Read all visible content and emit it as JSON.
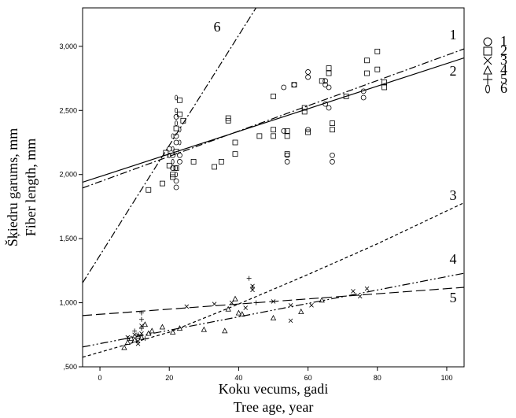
{
  "chart_data": {
    "type": "scatter",
    "xlabel_lines": [
      "Koku vecums, gadi",
      "Tree age, year"
    ],
    "ylabel_lines": [
      "Šķiedru garums, mm",
      "Fiber length, mm"
    ],
    "xlim": [
      -5,
      105
    ],
    "ylim": [
      500,
      3300
    ],
    "x_ticks": [
      {
        "value": 0,
        "label": "0"
      },
      {
        "value": 20,
        "label": "20"
      },
      {
        "value": 40,
        "label": "40"
      },
      {
        "value": 60,
        "label": "60"
      },
      {
        "value": 80,
        "label": "80"
      },
      {
        "value": 100,
        "label": "100"
      }
    ],
    "y_ticks": [
      {
        "value": 500,
        "label": ",500"
      },
      {
        "value": 1000,
        "label": "1,000"
      },
      {
        "value": 1500,
        "label": "1,500"
      },
      {
        "value": 2000,
        "label": "2,000"
      },
      {
        "value": 2500,
        "label": "2,500"
      },
      {
        "value": 3000,
        "label": "3,000"
      }
    ],
    "grid": false,
    "legend_position": "right-outside-top",
    "series": [
      {
        "name": "1",
        "marker": "circle",
        "points": [
          [
            20,
            2200
          ],
          [
            21,
            2150
          ],
          [
            21,
            2050
          ],
          [
            22,
            1950
          ],
          [
            22,
            1900
          ],
          [
            22,
            2250
          ],
          [
            22,
            2300
          ],
          [
            23,
            2150
          ],
          [
            23,
            2100
          ],
          [
            22,
            2450
          ],
          [
            53,
            2680
          ],
          [
            54,
            2150
          ],
          [
            54,
            2100
          ],
          [
            56,
            2700
          ],
          [
            53,
            2340
          ],
          [
            60,
            2800
          ],
          [
            60,
            2760
          ],
          [
            60,
            2350
          ],
          [
            65,
            2730
          ],
          [
            65,
            2700
          ],
          [
            66,
            2680
          ],
          [
            65,
            2550
          ],
          [
            66,
            2520
          ],
          [
            67,
            2150
          ],
          [
            67,
            2100
          ],
          [
            76,
            2650
          ],
          [
            76,
            2600
          ]
        ],
        "trend": {
          "type": "linear",
          "style": "dashdot",
          "y_at_xmin": 1895,
          "y_at_xmax": 2980
        }
      },
      {
        "name": "2",
        "marker": "square",
        "points": [
          [
            14,
            1880
          ],
          [
            18,
            1930
          ],
          [
            19,
            2170
          ],
          [
            20,
            2070
          ],
          [
            21,
            2000
          ],
          [
            21,
            1980
          ],
          [
            22,
            2050
          ],
          [
            22,
            2360
          ],
          [
            22,
            2180
          ],
          [
            23,
            2580
          ],
          [
            23,
            2470
          ],
          [
            24,
            2420
          ],
          [
            27,
            2100
          ],
          [
            33,
            2060
          ],
          [
            35,
            2100
          ],
          [
            37,
            2440
          ],
          [
            37,
            2420
          ],
          [
            39,
            2160
          ],
          [
            39,
            2250
          ],
          [
            46,
            2300
          ],
          [
            50,
            2610
          ],
          [
            50,
            2350
          ],
          [
            50,
            2300
          ],
          [
            54,
            2340
          ],
          [
            54,
            2300
          ],
          [
            54,
            2160
          ],
          [
            56,
            2700
          ],
          [
            59,
            2520
          ],
          [
            59,
            2490
          ],
          [
            60,
            2330
          ],
          [
            64,
            2730
          ],
          [
            66,
            2830
          ],
          [
            66,
            2790
          ],
          [
            67,
            2400
          ],
          [
            67,
            2350
          ],
          [
            71,
            2610
          ],
          [
            77,
            2890
          ],
          [
            77,
            2790
          ],
          [
            80,
            2960
          ],
          [
            80,
            2820
          ],
          [
            82,
            2720
          ],
          [
            82,
            2680
          ]
        ],
        "trend": {
          "type": "linear",
          "style": "solid",
          "y_at_xmin": 1940,
          "y_at_xmax": 2910
        }
      },
      {
        "name": "3",
        "marker": "x",
        "points": [
          [
            8,
            730
          ],
          [
            10,
            750
          ],
          [
            11,
            700
          ],
          [
            11,
            680
          ],
          [
            12,
            760
          ],
          [
            12,
            820
          ],
          [
            25,
            970
          ],
          [
            33,
            990
          ],
          [
            38,
            1000
          ],
          [
            42,
            960
          ],
          [
            44,
            1130
          ],
          [
            44,
            1100
          ],
          [
            50,
            1010
          ],
          [
            55,
            860
          ],
          [
            55,
            980
          ],
          [
            61,
            980
          ],
          [
            73,
            1090
          ],
          [
            75,
            1050
          ],
          [
            77,
            1110
          ]
        ],
        "trend": {
          "type": "quadratic",
          "style": "dashed",
          "x": [
            -5,
            20,
            40,
            60,
            80,
            105
          ],
          "y": [
            575,
            770,
            990,
            1220,
            1460,
            1780
          ]
        }
      },
      {
        "name": "4",
        "marker": "triangle",
        "points": [
          [
            7,
            650
          ],
          [
            8,
            690
          ],
          [
            9,
            720
          ],
          [
            10,
            710
          ],
          [
            11,
            740
          ],
          [
            12,
            730
          ],
          [
            13,
            830
          ],
          [
            14,
            760
          ],
          [
            15,
            780
          ],
          [
            18,
            810
          ],
          [
            21,
            770
          ],
          [
            23,
            800
          ],
          [
            30,
            790
          ],
          [
            36,
            780
          ],
          [
            37,
            950
          ],
          [
            39,
            1030
          ],
          [
            40,
            920
          ],
          [
            41,
            910
          ],
          [
            50,
            880
          ],
          [
            58,
            930
          ],
          [
            64,
            1020
          ]
        ],
        "trend": {
          "type": "linear",
          "style": "dashdotdot",
          "y_at_xmin": 655,
          "y_at_xmax": 1230
        }
      },
      {
        "name": "5",
        "marker": "plus",
        "points": [
          [
            8,
            720
          ],
          [
            10,
            780
          ],
          [
            11,
            750
          ],
          [
            12,
            870
          ],
          [
            12,
            920
          ],
          [
            12,
            800
          ],
          [
            13,
            720
          ],
          [
            43,
            1190
          ],
          [
            44,
            1120
          ],
          [
            45,
            1000
          ]
        ],
        "trend": {
          "type": "linear",
          "style": "longdash",
          "y_at_xmin": 900,
          "y_at_xmax": 1120
        }
      },
      {
        "name": "6",
        "marker": "ellipse",
        "points": [
          [
            20,
            2150
          ],
          [
            21,
            2300
          ],
          [
            21,
            2200
          ],
          [
            21,
            2100
          ],
          [
            22,
            2050
          ],
          [
            22,
            2400
          ],
          [
            22,
            2500
          ],
          [
            22,
            2600
          ],
          [
            23,
            2350
          ],
          [
            23,
            2250
          ],
          [
            22,
            2000
          ]
        ],
        "trend": {
          "type": "linear",
          "style": "dashdot",
          "x0": -5,
          "y0": 1155,
          "x1": 45,
          "y1": 3300
        }
      }
    ]
  }
}
